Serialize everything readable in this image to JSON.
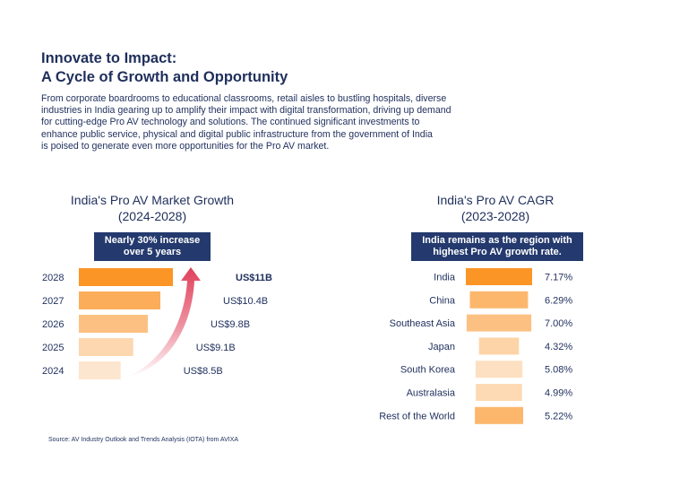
{
  "header": {
    "title_line1": "Innovate to Impact:",
    "title_line2": "A Cycle of Growth and Opportunity"
  },
  "intro": {
    "lines": [
      "From corporate boardrooms to educational classrooms, retail aisles to bustling hospitals, diverse",
      "industries in India gearing up to amplify their impact with digital transformation, driving up demand",
      "for cutting-edge Pro AV technology and solutions. The continued significant investments to",
      "enhance public service, physical and digital public infrastructure from the government of India",
      "is poised to generate even more opportunities for the Pro AV market."
    ]
  },
  "colors": {
    "navy": "#1f2f5c",
    "callout_bg": "#243a6e",
    "arrow_red": "#e0405a"
  },
  "chart_data": [
    {
      "type": "bar",
      "orientation": "horizontal",
      "title_line1": "India's Pro AV Market Growth",
      "title_line2": "(2024-2028)",
      "callout_line1": "Nearly 30% increase",
      "callout_line2": "over 5 years",
      "categories": [
        "2028",
        "2027",
        "2026",
        "2025",
        "2024"
      ],
      "values": [
        11,
        10.4,
        9.8,
        9.1,
        8.5
      ],
      "labels": [
        "US$11B",
        "US$10.4B",
        "US$9.8B",
        "US$9.1B",
        "US$8.5B"
      ],
      "colors": [
        "#fb9626",
        "#fcad5a",
        "#fcc182",
        "#fdd7b0",
        "#fde6cf"
      ],
      "unit": "US$ billion",
      "xlim": [
        6.5,
        11
      ]
    },
    {
      "type": "bar",
      "orientation": "horizontal",
      "title_line1": "India's Pro AV CAGR",
      "title_line2": "(2023-2028)",
      "callout_line1": "India remains as the region with",
      "callout_line2": "highest Pro AV growth rate.",
      "categories": [
        "India",
        "China",
        "Southeast Asia",
        "Japan",
        "South Korea",
        "Australasia",
        "Rest of the World"
      ],
      "values": [
        7.17,
        6.29,
        7.0,
        4.32,
        5.08,
        4.99,
        5.22
      ],
      "labels": [
        "7.17%",
        "6.29%",
        "7.00%",
        "4.32%",
        "5.08%",
        "4.99%",
        "5.22%"
      ],
      "colors": [
        "#fb9626",
        "#fcb76d",
        "#fcc182",
        "#fdd4a8",
        "#fde0c2",
        "#fdd9b4",
        "#fcb76d"
      ],
      "unit": "%"
    }
  ],
  "source": "Source: AV Industry Outlook and Trends Analysis (IOTA) from AVIXA"
}
